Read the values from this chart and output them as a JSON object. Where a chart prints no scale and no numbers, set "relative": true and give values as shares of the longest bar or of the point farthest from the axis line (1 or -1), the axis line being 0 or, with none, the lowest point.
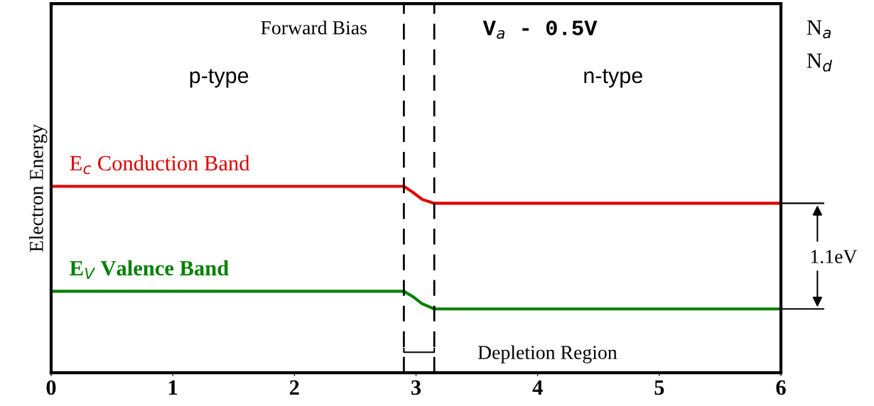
{
  "chart_data": {
    "type": "line",
    "relative": true,
    "ylabel": "Electron Energy",
    "xlim": [
      0,
      6
    ],
    "xticks": [
      0,
      1,
      2,
      3,
      4,
      5,
      6
    ],
    "grid": false,
    "marker": "none",
    "line_style": "solid",
    "series": [
      {
        "name": "E$_{c}$ Conduction Band",
        "color": "#e00000",
        "x": [
          0,
          2.9,
          2.97,
          3.05,
          3.15,
          6
        ],
        "values": [
          1,
          1,
          0.97,
          0.93,
          0.909,
          0.909
        ]
      },
      {
        "name": "E$_{V}$ Valence Band",
        "color": "#008000",
        "x": [
          0,
          2.9,
          2.97,
          3.05,
          3.15,
          6
        ],
        "values": [
          0.437,
          0.437,
          0.41,
          0.37,
          0.342,
          0.342
        ]
      }
    ],
    "ref_lines": [
      {
        "axis": "x",
        "value": 2.9,
        "color": "#000000",
        "line_style": "dashed"
      },
      {
        "axis": "x",
        "value": 3.15,
        "color": "#000000",
        "line_style": "dashed"
      }
    ],
    "annotations": [
      "Forward Bias",
      "V$_{a}$ - 0.5V",
      "p-type",
      "n-type",
      "Depletion Region",
      "1.1eV",
      "N$_{a}$",
      "N$_{d}$"
    ]
  }
}
